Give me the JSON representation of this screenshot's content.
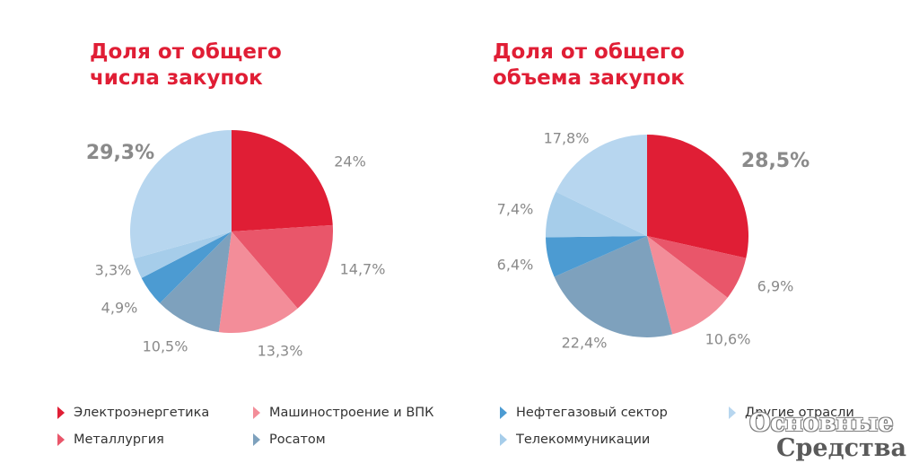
{
  "chart_data": [
    {
      "type": "pie",
      "title": "Доля от общего числа закупок",
      "title_lines": [
        "Доля от общего",
        "числа закупок"
      ],
      "slices": [
        {
          "category": "Электроэнергетика",
          "value": 24,
          "label": "24%",
          "color": "#e01e35"
        },
        {
          "category": "Металлургия",
          "value": 14.7,
          "label": "14,7%",
          "color": "#e9566a"
        },
        {
          "category": "Машиностроение и ВПК",
          "value": 13.3,
          "label": "13,3%",
          "color": "#f38d99"
        },
        {
          "category": "Росатом",
          "value": 10.5,
          "label": "10,5%",
          "color": "#7ea1bd"
        },
        {
          "category": "Нефтегазовый сектор",
          "value": 4.9,
          "label": "4,9%",
          "color": "#4c9bd2"
        },
        {
          "category": "Телекоммуникации",
          "value": 3.3,
          "label": "3,3%",
          "color": "#a6cdea"
        },
        {
          "category": "Другие отрасли",
          "value": 29.3,
          "label": "29,3%",
          "color": "#b7d6ef"
        }
      ]
    },
    {
      "type": "pie",
      "title": "Доля от общего объема закупок",
      "title_lines": [
        "Доля от общего",
        "объема закупок"
      ],
      "slices": [
        {
          "category": "Электроэнергетика",
          "value": 28.5,
          "label": "28,5%",
          "color": "#e01e35"
        },
        {
          "category": "Металлургия",
          "value": 6.9,
          "label": "6,9%",
          "color": "#e9566a"
        },
        {
          "category": "Машиностроение и ВПК",
          "value": 10.6,
          "label": "10,6%",
          "color": "#f38d99"
        },
        {
          "category": "Росатом",
          "value": 22.4,
          "label": "22,4%",
          "color": "#7ea1bd"
        },
        {
          "category": "Нефтегазовый сектор",
          "value": 6.4,
          "label": "6,4%",
          "color": "#4c9bd2"
        },
        {
          "category": "Телекоммуникации",
          "value": 7.4,
          "label": "7,4%",
          "color": "#a6cdea"
        },
        {
          "category": "Другие отрасли",
          "value": 17.8,
          "label": "17,8%",
          "color": "#b7d6ef"
        }
      ]
    }
  ],
  "legend": [
    {
      "label": "Электроэнергетика",
      "color": "#e01e35"
    },
    {
      "label": "Металлургия",
      "color": "#e9566a"
    },
    {
      "label": "Машиностроение и ВПК",
      "color": "#f38d99"
    },
    {
      "label": "Росатом",
      "color": "#7ea1bd"
    },
    {
      "label": "Нефтегазовый сектор",
      "color": "#4c9bd2"
    },
    {
      "label": "Телекоммуникации",
      "color": "#a6cdea"
    },
    {
      "label": "Другие отрасли",
      "color": "#b7d6ef"
    }
  ],
  "watermark": {
    "line1": "Основные",
    "line2": "Средства"
  }
}
